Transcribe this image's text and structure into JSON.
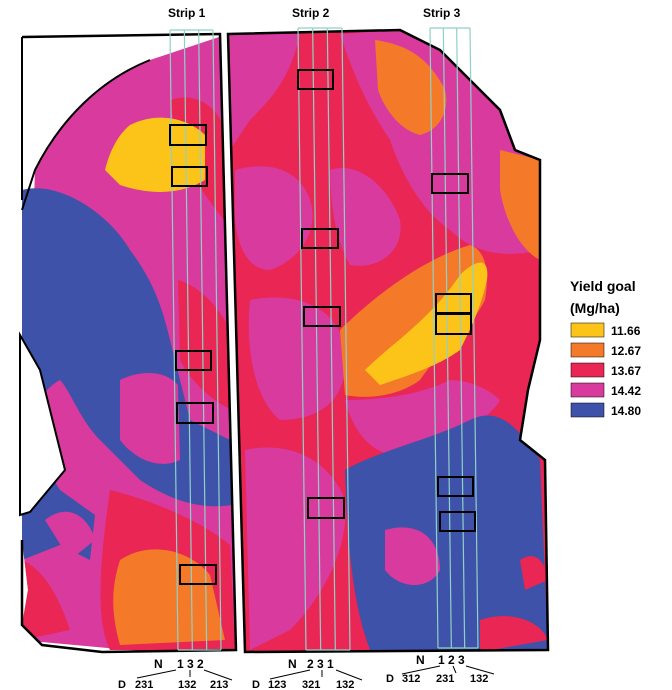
{
  "strips": [
    {
      "label": "Strip 1",
      "n_label": "N",
      "n_order": "1 3 2",
      "d_label": "D",
      "d_groups": [
        "231",
        "132",
        "213"
      ]
    },
    {
      "label": "Strip 2",
      "n_label": "N",
      "n_order": "2 3 1",
      "d_label": "D",
      "d_groups": [
        "123",
        "321",
        "132"
      ]
    },
    {
      "label": "Strip 3",
      "n_label": "N",
      "n_order": "1 2 3",
      "d_label": "D",
      "d_groups": [
        "312",
        "231",
        "132"
      ]
    }
  ],
  "legend": {
    "title_line1": "Yield goal",
    "title_line2": "(Mg/ha)",
    "items": [
      {
        "value": "11.66",
        "color": "#fcc419"
      },
      {
        "value": "12.67",
        "color": "#f47a2a"
      },
      {
        "value": "13.67",
        "color": "#e92654"
      },
      {
        "value": "14.42",
        "color": "#d93a9e"
      },
      {
        "value": "14.80",
        "color": "#3d52a8"
      }
    ]
  },
  "colors": {
    "strip_outline": "#8fd1c6",
    "plot_outline": "#000000",
    "field_outline": "#000000"
  }
}
